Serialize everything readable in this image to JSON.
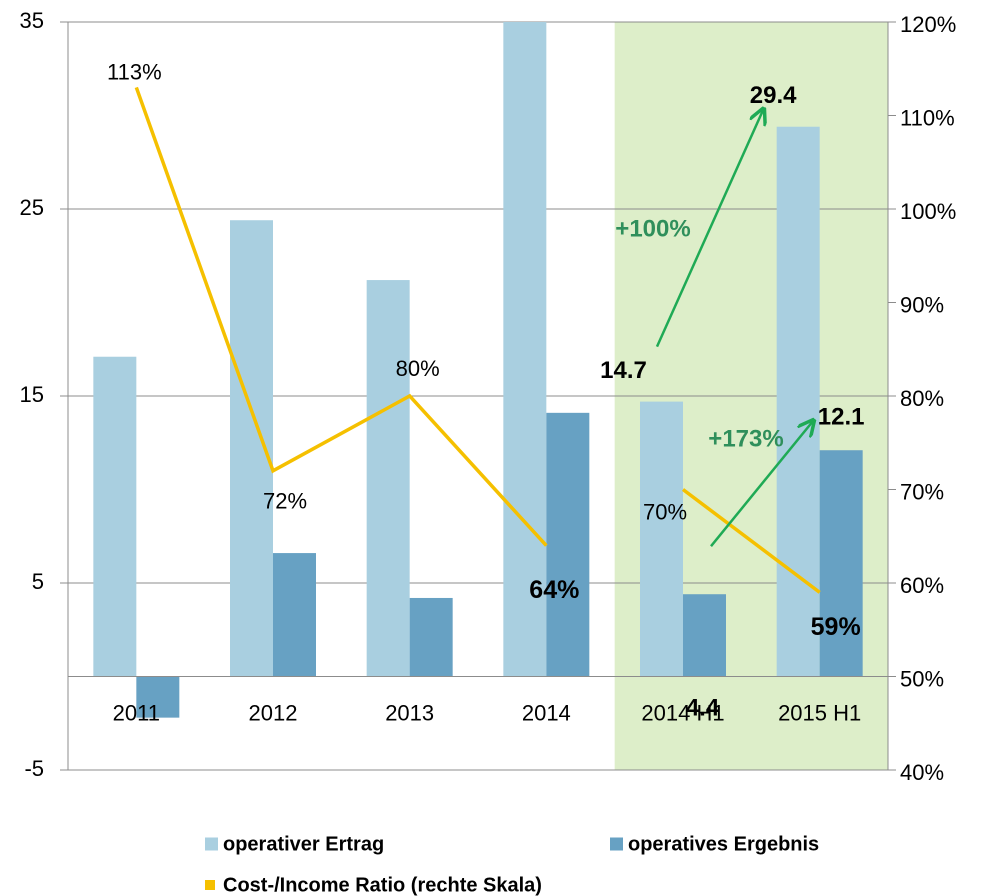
{
  "chart_data": {
    "type": "bar",
    "categories": [
      "2011",
      "2012",
      "2013",
      "2014",
      "2014 H1",
      "2015 H1"
    ],
    "series": [
      {
        "name": "operativer Ertrag",
        "color": "#a9cfe0",
        "values": [
          17.1,
          24.4,
          21.2,
          35,
          14.7,
          29.4
        ],
        "value_labels": [
          null,
          null,
          null,
          null,
          "14.7",
          "29.4"
        ]
      },
      {
        "name": "operatives Ergebnis",
        "color": "#67a1c3",
        "values": [
          -2.2,
          6.6,
          4.2,
          14.1,
          4.4,
          12.1
        ],
        "value_labels": [
          null,
          null,
          null,
          null,
          "4.4",
          "12.1"
        ]
      },
      {
        "name": "Cost-/Income Ratio (rechte Skala)",
        "type": "line",
        "axis": "y2",
        "color": "#f5c000",
        "values": [
          113,
          72,
          80,
          64,
          70,
          59
        ],
        "value_labels": [
          "113%",
          "72%",
          "80%",
          "64%",
          "70%",
          "59%"
        ]
      }
    ],
    "ylim": [
      -5,
      35
    ],
    "yticks": [
      -5,
      5,
      15,
      25,
      35
    ],
    "y2lim": [
      40,
      120
    ],
    "y2ticks": [
      {
        "value": 40,
        "label": "40%"
      },
      {
        "value": 50,
        "label": "50%"
      },
      {
        "value": 60,
        "label": "60%"
      },
      {
        "value": 70,
        "label": "70%"
      },
      {
        "value": 80,
        "label": "80%"
      },
      {
        "value": 90,
        "label": "90%"
      },
      {
        "value": 100,
        "label": "100%"
      },
      {
        "value": 110,
        "label": "110%"
      },
      {
        "value": 120,
        "label": "120%"
      }
    ],
    "grid": true,
    "highlight": {
      "from": "2014 H1",
      "color": "#ddeec9"
    },
    "annotations": [
      {
        "text": "+100%",
        "color": "#2f8f5b"
      },
      {
        "text": "+173%",
        "color": "#2f8f5b"
      }
    ]
  }
}
